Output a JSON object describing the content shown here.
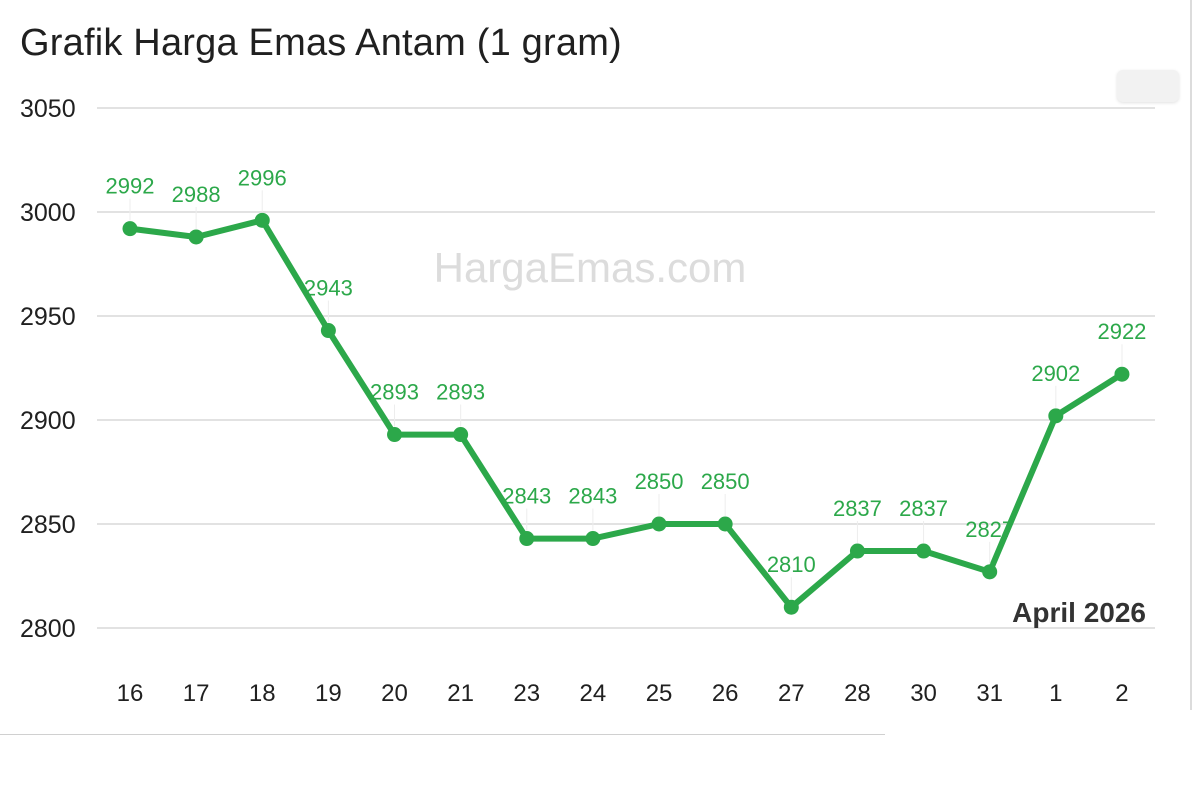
{
  "chart_data": {
    "type": "line",
    "title": "Grafik Harga Emas Antam (1 gram)",
    "watermark": "HargaEmas.com",
    "period_label": "April 2026",
    "categories": [
      "16",
      "17",
      "18",
      "19",
      "20",
      "21",
      "23",
      "24",
      "25",
      "26",
      "27",
      "28",
      "30",
      "31",
      "1",
      "2"
    ],
    "series": [
      {
        "values": [
          2992,
          2988,
          2996,
          2943,
          2893,
          2893,
          2843,
          2843,
          2850,
          2850,
          2810,
          2837,
          2837,
          2827,
          2902,
          2922
        ]
      }
    ],
    "y_ticks": [
      2800,
      2850,
      2900,
      2950,
      3000,
      3050
    ],
    "ylim": [
      2800,
      3050
    ],
    "grid": true,
    "legend": "none",
    "line_color": "#2ca84a",
    "label_color": "#2ca84a",
    "grid_color": "#d9d9d9"
  }
}
